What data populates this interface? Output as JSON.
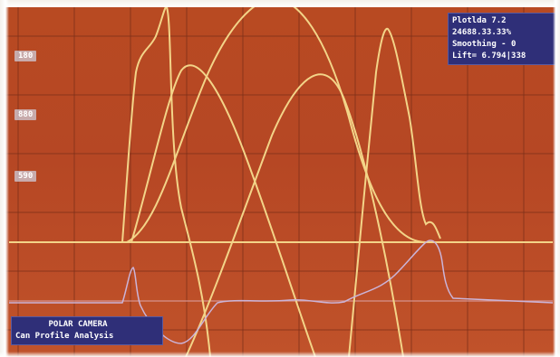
{
  "colors": {
    "background": "#b84a22",
    "grid": "#7a2e18",
    "trace_primary": "#f3d488",
    "trace_secondary": "#cbb4d8",
    "panel": "#2f2f78",
    "text": "#ffffff"
  },
  "y_labels": [
    "180",
    "880",
    "590"
  ],
  "info_panel": {
    "rows": [
      "Plotlda   7.2",
      "24688.33.33%",
      "Smoothing -  0",
      "Lift= 6.794|338"
    ]
  },
  "title_panel": {
    "line1": "POLAR CAMERA",
    "line2": "Can Profile Analysis"
  }
}
